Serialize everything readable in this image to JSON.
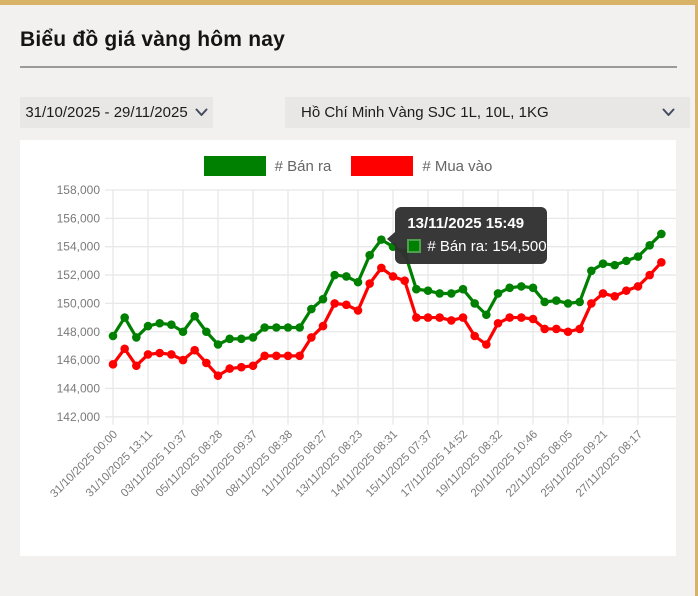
{
  "page": {
    "title": "Biểu đồ giá vàng hôm nay"
  },
  "filters": {
    "date_range": "31/10/2025 - 29/11/2025",
    "product": "Hồ Chí Minh Vàng SJC 1L, 10L, 1KG"
  },
  "legend": {
    "items": [
      {
        "label": "# Bán ra",
        "color": "#008000"
      },
      {
        "label": "# Mua vào",
        "color": "#ff0000"
      }
    ]
  },
  "tooltip": {
    "title": "13/11/2025 15:49",
    "series_label": "# Bán ra:",
    "value": "154,500",
    "text": "# Bán ra: 154,500",
    "swatch_color": "#008000",
    "series_index": 0,
    "point_index": 23
  },
  "chart_data": {
    "type": "line",
    "grid": true,
    "legend_position": "top",
    "ylim": [
      142000,
      158000
    ],
    "y_tick_step": 2000,
    "y_tick_labels": [
      "158,000",
      "156,000",
      "154,000",
      "152,000",
      "150,000",
      "148,000",
      "146,000",
      "144,000",
      "142,000"
    ],
    "x_label_every": 3,
    "x_tick_labels": [
      "31/10/2025 00:00",
      "31/10/2025 13:11",
      "03/11/2025 10:37",
      "05/11/2025 08:28",
      "06/11/2025 09:37",
      "08/11/2025 08:38",
      "11/11/2025 08:27",
      "13/11/2025 08:23",
      "14/11/2025 08:31",
      "15/11/2025 07:37",
      "17/11/2025 14:52",
      "19/11/2025 08:32",
      "20/11/2025 10:46",
      "22/11/2025 08:05",
      "25/11/2025 09:21",
      "27/11/2025 08:17"
    ],
    "series": [
      {
        "name": "# Bán ra",
        "color": "#008000",
        "values": [
          147700,
          149000,
          147600,
          148400,
          148600,
          148500,
          148000,
          149100,
          148000,
          147100,
          147500,
          147500,
          147600,
          148300,
          148300,
          148300,
          148300,
          149600,
          150300,
          152000,
          151900,
          151500,
          153400,
          154500,
          154000,
          153600,
          151000,
          150900,
          150700,
          150700,
          151000,
          150000,
          149200,
          150700,
          151100,
          151200,
          151100,
          150100,
          150200,
          150000,
          150100,
          152300,
          152800,
          152700,
          153000,
          153300,
          154100,
          154900
        ]
      },
      {
        "name": "# Mua vào",
        "color": "#ff0000",
        "values": [
          145700,
          146800,
          145600,
          146400,
          146500,
          146400,
          146000,
          146700,
          145800,
          144900,
          145400,
          145500,
          145600,
          146300,
          146300,
          146300,
          146300,
          147600,
          148400,
          150000,
          149900,
          149500,
          151400,
          152500,
          151900,
          151600,
          149000,
          149000,
          149000,
          148800,
          149000,
          147700,
          147100,
          148600,
          149000,
          149000,
          148900,
          148200,
          148200,
          148000,
          148200,
          150000,
          150700,
          150500,
          150900,
          151200,
          152000,
          152900
        ]
      }
    ]
  },
  "colors": {
    "accent_border": "#d8b267",
    "page_bg": "#f2f1ef",
    "card_bg": "#ffffff",
    "grid": "#e8e8e8",
    "axis_text": "#7a7a7a",
    "tooltip_bg": "#303030",
    "legend_text": "#666666"
  }
}
